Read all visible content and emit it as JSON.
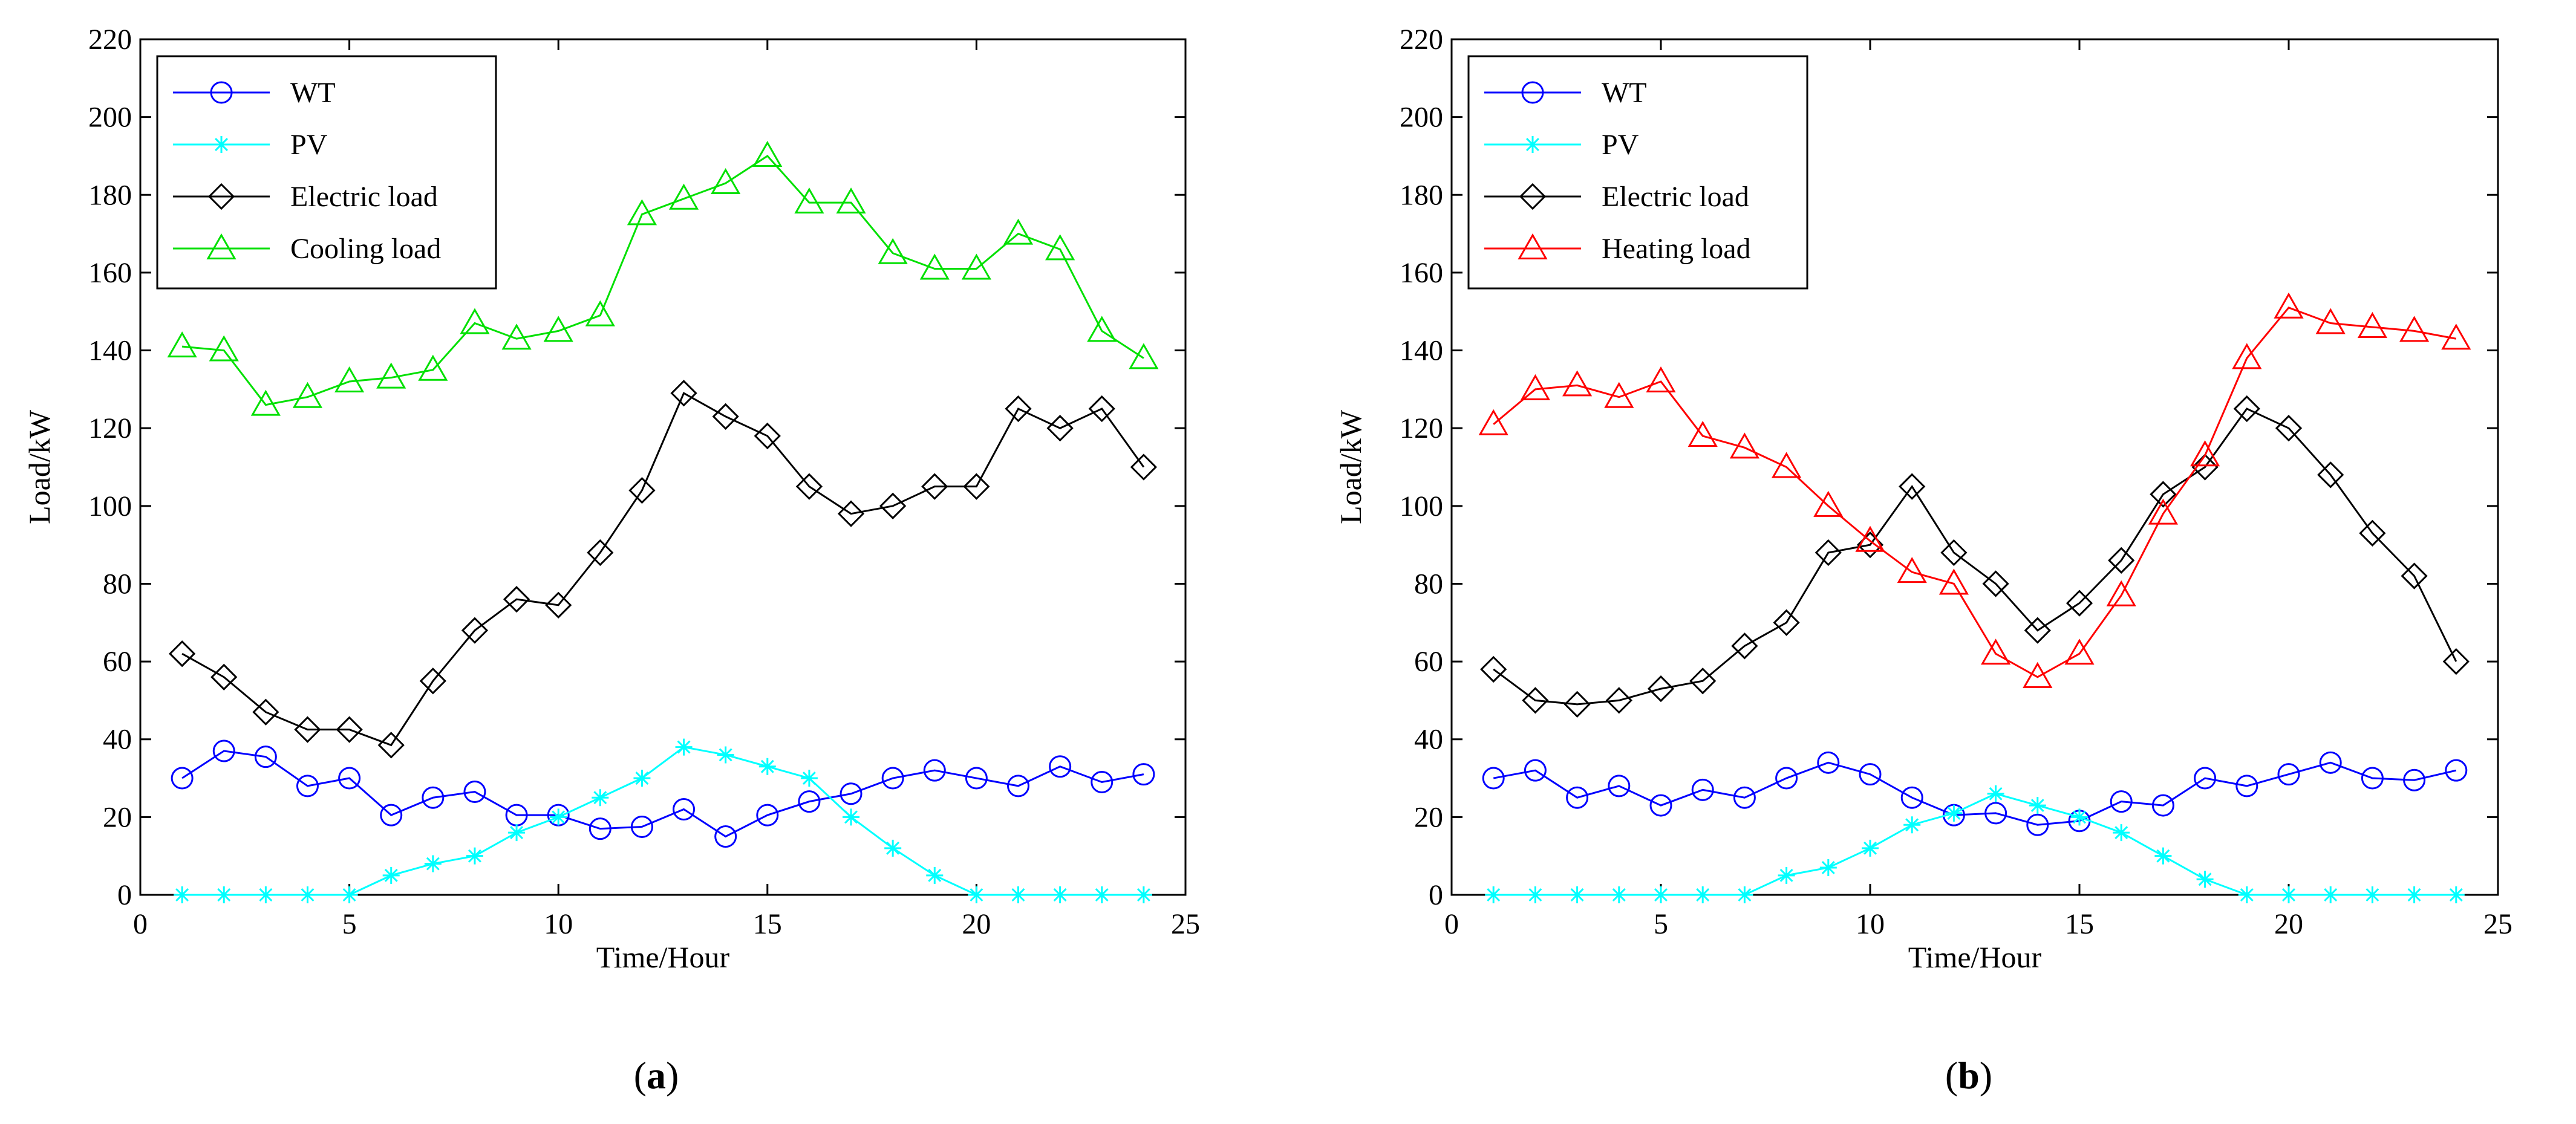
{
  "chart_data": [
    {
      "type": "line",
      "panel_label": "(a)",
      "xlabel": "Time/Hour",
      "ylabel": "Load/kW",
      "xlim": [
        0,
        25
      ],
      "ylim": [
        0,
        220
      ],
      "xticks": [
        0,
        5,
        10,
        15,
        20,
        25
      ],
      "yticks": [
        0,
        20,
        40,
        60,
        80,
        100,
        120,
        140,
        160,
        180,
        200,
        220
      ],
      "grid": false,
      "legend_position": "top-left",
      "x": [
        1,
        2,
        3,
        4,
        5,
        6,
        7,
        8,
        9,
        10,
        11,
        12,
        13,
        14,
        15,
        16,
        17,
        18,
        19,
        20,
        21,
        22,
        23,
        24
      ],
      "series": [
        {
          "name": "WT",
          "color": "#0000ff",
          "marker": "circle",
          "values": [
            30,
            37,
            35.5,
            28,
            30,
            20.5,
            25,
            26.5,
            20.5,
            20.5,
            17,
            17.5,
            22,
            15,
            20.5,
            24,
            26,
            30,
            32,
            30,
            28,
            33,
            29,
            31
          ]
        },
        {
          "name": "PV",
          "color": "#00ffff",
          "marker": "star",
          "values": [
            0,
            0,
            0,
            0,
            0,
            5,
            8,
            10,
            16,
            20,
            25,
            30,
            38,
            36,
            33,
            30,
            20,
            12,
            5,
            0,
            0,
            0,
            0,
            0
          ]
        },
        {
          "name": "Electric load",
          "color": "#000000",
          "marker": "diamond",
          "values": [
            62,
            56,
            47,
            42.5,
            42.5,
            38.5,
            55,
            68,
            76,
            74.5,
            88,
            104,
            129,
            123,
            118,
            105,
            98,
            100,
            105,
            105,
            125,
            120,
            125,
            110
          ]
        },
        {
          "name": "Cooling load",
          "color": "#00e000",
          "marker": "triangle",
          "values": [
            141,
            140,
            126,
            128,
            132,
            133,
            135,
            147,
            143,
            145,
            149,
            175,
            179,
            183,
            190,
            178,
            178,
            165,
            161,
            161,
            170,
            166,
            145,
            138
          ]
        }
      ]
    },
    {
      "type": "line",
      "panel_label": "(b)",
      "xlabel": "Time/Hour",
      "ylabel": "Load/kW",
      "xlim": [
        0,
        25
      ],
      "ylim": [
        0,
        220
      ],
      "xticks": [
        0,
        5,
        10,
        15,
        20,
        25
      ],
      "yticks": [
        0,
        20,
        40,
        60,
        80,
        100,
        120,
        140,
        160,
        180,
        200,
        220
      ],
      "grid": false,
      "legend_position": "top-left",
      "x": [
        1,
        2,
        3,
        4,
        5,
        6,
        7,
        8,
        9,
        10,
        11,
        12,
        13,
        14,
        15,
        16,
        17,
        18,
        19,
        20,
        21,
        22,
        23,
        24
      ],
      "series": [
        {
          "name": "WT",
          "color": "#0000ff",
          "marker": "circle",
          "values": [
            30,
            32,
            25,
            28,
            23,
            27,
            25,
            30,
            34,
            31,
            25,
            20.5,
            21,
            18,
            19,
            24,
            23,
            30,
            28,
            31,
            34,
            30,
            29.5,
            32
          ]
        },
        {
          "name": "PV",
          "color": "#00ffff",
          "marker": "star",
          "values": [
            0,
            0,
            0,
            0,
            0,
            0,
            0,
            5,
            7,
            12,
            18,
            21,
            26,
            23,
            20,
            16,
            10,
            4,
            0,
            0,
            0,
            0,
            0,
            0
          ]
        },
        {
          "name": "Electric load",
          "color": "#000000",
          "marker": "diamond",
          "values": [
            58,
            50,
            49,
            50,
            53,
            55,
            64,
            70,
            88,
            90,
            105,
            88,
            80,
            68,
            75,
            86,
            103,
            110,
            125,
            120,
            108,
            93,
            82,
            60
          ]
        },
        {
          "name": "Heating load",
          "color": "#ff0000",
          "marker": "triangle",
          "values": [
            121,
            130,
            131,
            128,
            132,
            118,
            115,
            110,
            100,
            91,
            83,
            80,
            62,
            56,
            62,
            77,
            98,
            113,
            138,
            151,
            147,
            146,
            145,
            143
          ]
        }
      ]
    }
  ]
}
